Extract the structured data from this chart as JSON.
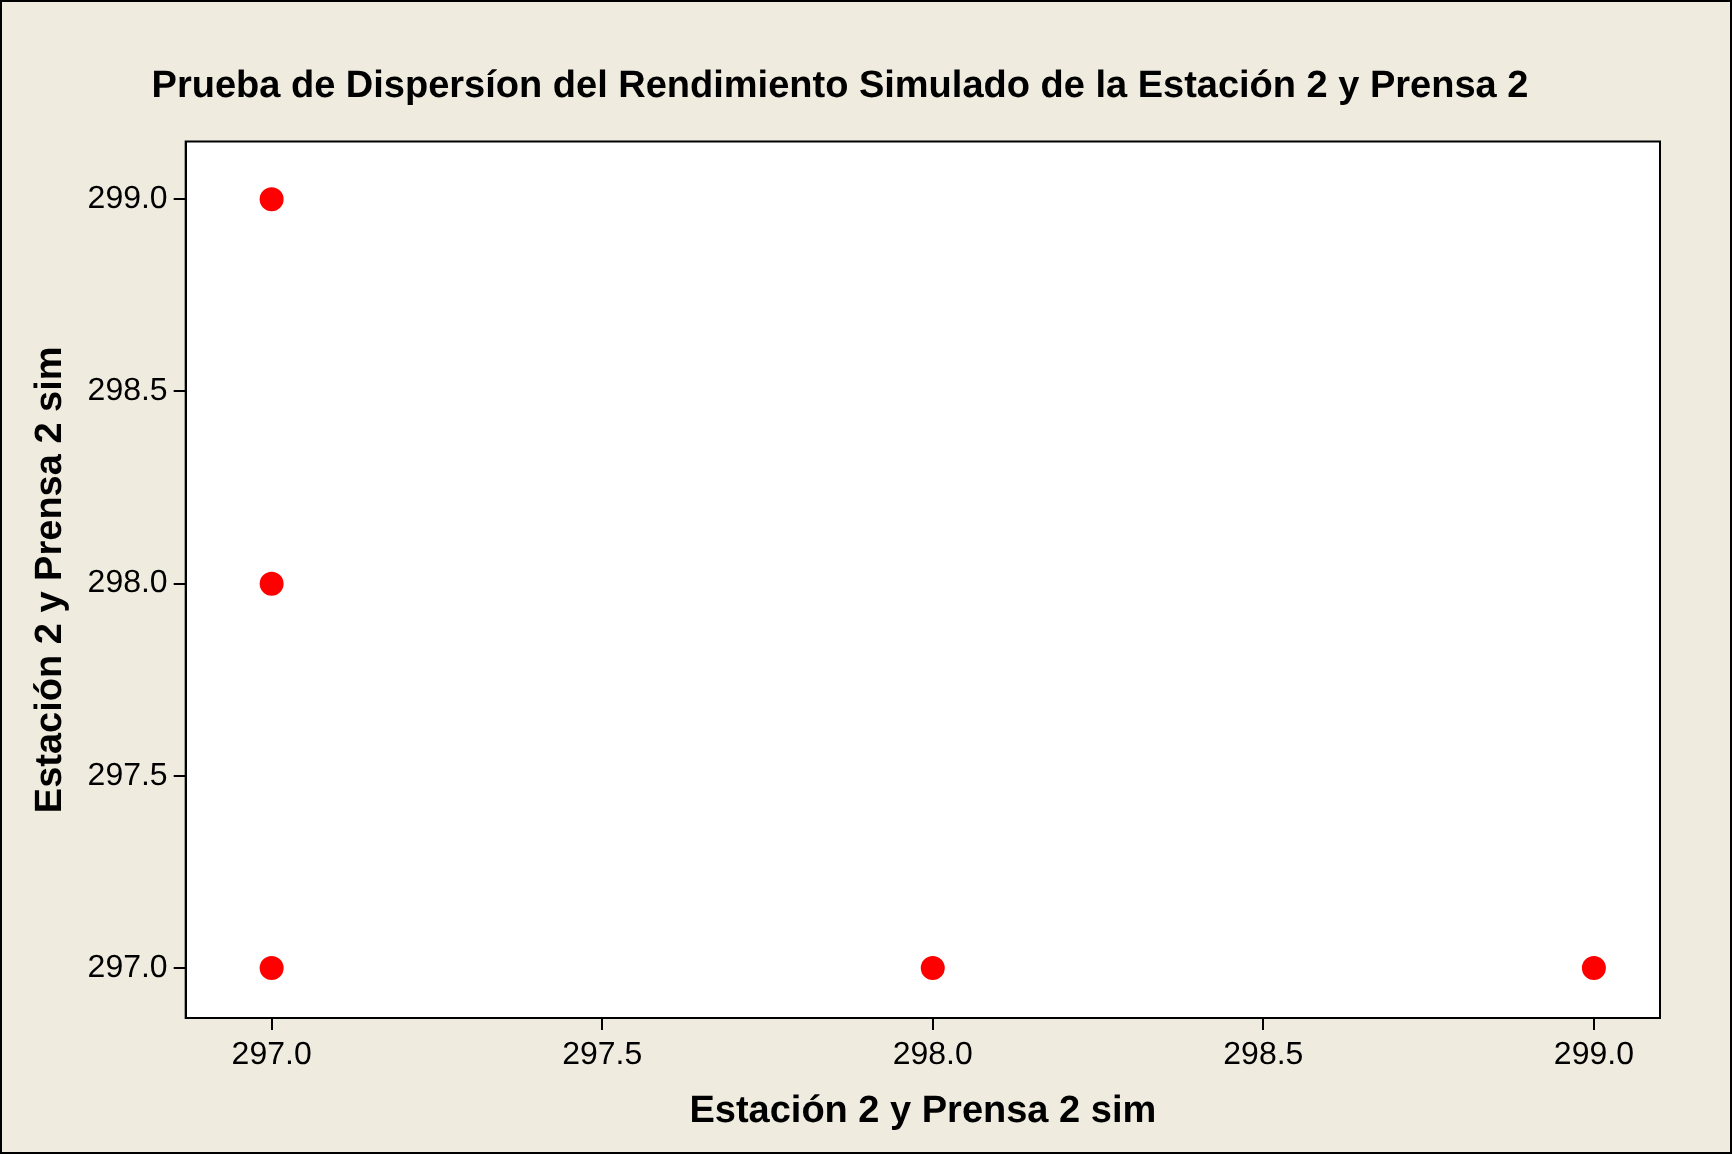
{
  "chart_data": {
    "type": "scatter",
    "title": "Prueba de Dispersíon del Rendimiento Simulado de la Estación 2 y Prensa 2",
    "xlabel": "Estación 2 y Prensa 2 sim",
    "ylabel": "Estación 2 y Prensa 2 sim",
    "series": [
      {
        "color": "#ff0000",
        "x": [
          297,
          297,
          297,
          298,
          299
        ],
        "values": [
          299,
          298,
          297,
          297,
          297
        ]
      }
    ],
    "xlim": [
      296.87,
      299.1
    ],
    "ylim": [
      296.87,
      299.15
    ],
    "xticks": [
      {
        "value": 297,
        "label": "297.0"
      },
      {
        "value": 297.5,
        "label": "297.5"
      },
      {
        "value": 298,
        "label": "298.0"
      },
      {
        "value": 298.5,
        "label": "298.5"
      },
      {
        "value": 299,
        "label": "299.0"
      }
    ],
    "yticks": [
      {
        "value": 297,
        "label": "297.0"
      },
      {
        "value": 297.5,
        "label": "297.5"
      },
      {
        "value": 298,
        "label": "298.0"
      },
      {
        "value": 298.5,
        "label": "298.5"
      },
      {
        "value": 299,
        "label": "299.0"
      }
    ],
    "grid": false,
    "legend": false,
    "marker": "circle"
  }
}
